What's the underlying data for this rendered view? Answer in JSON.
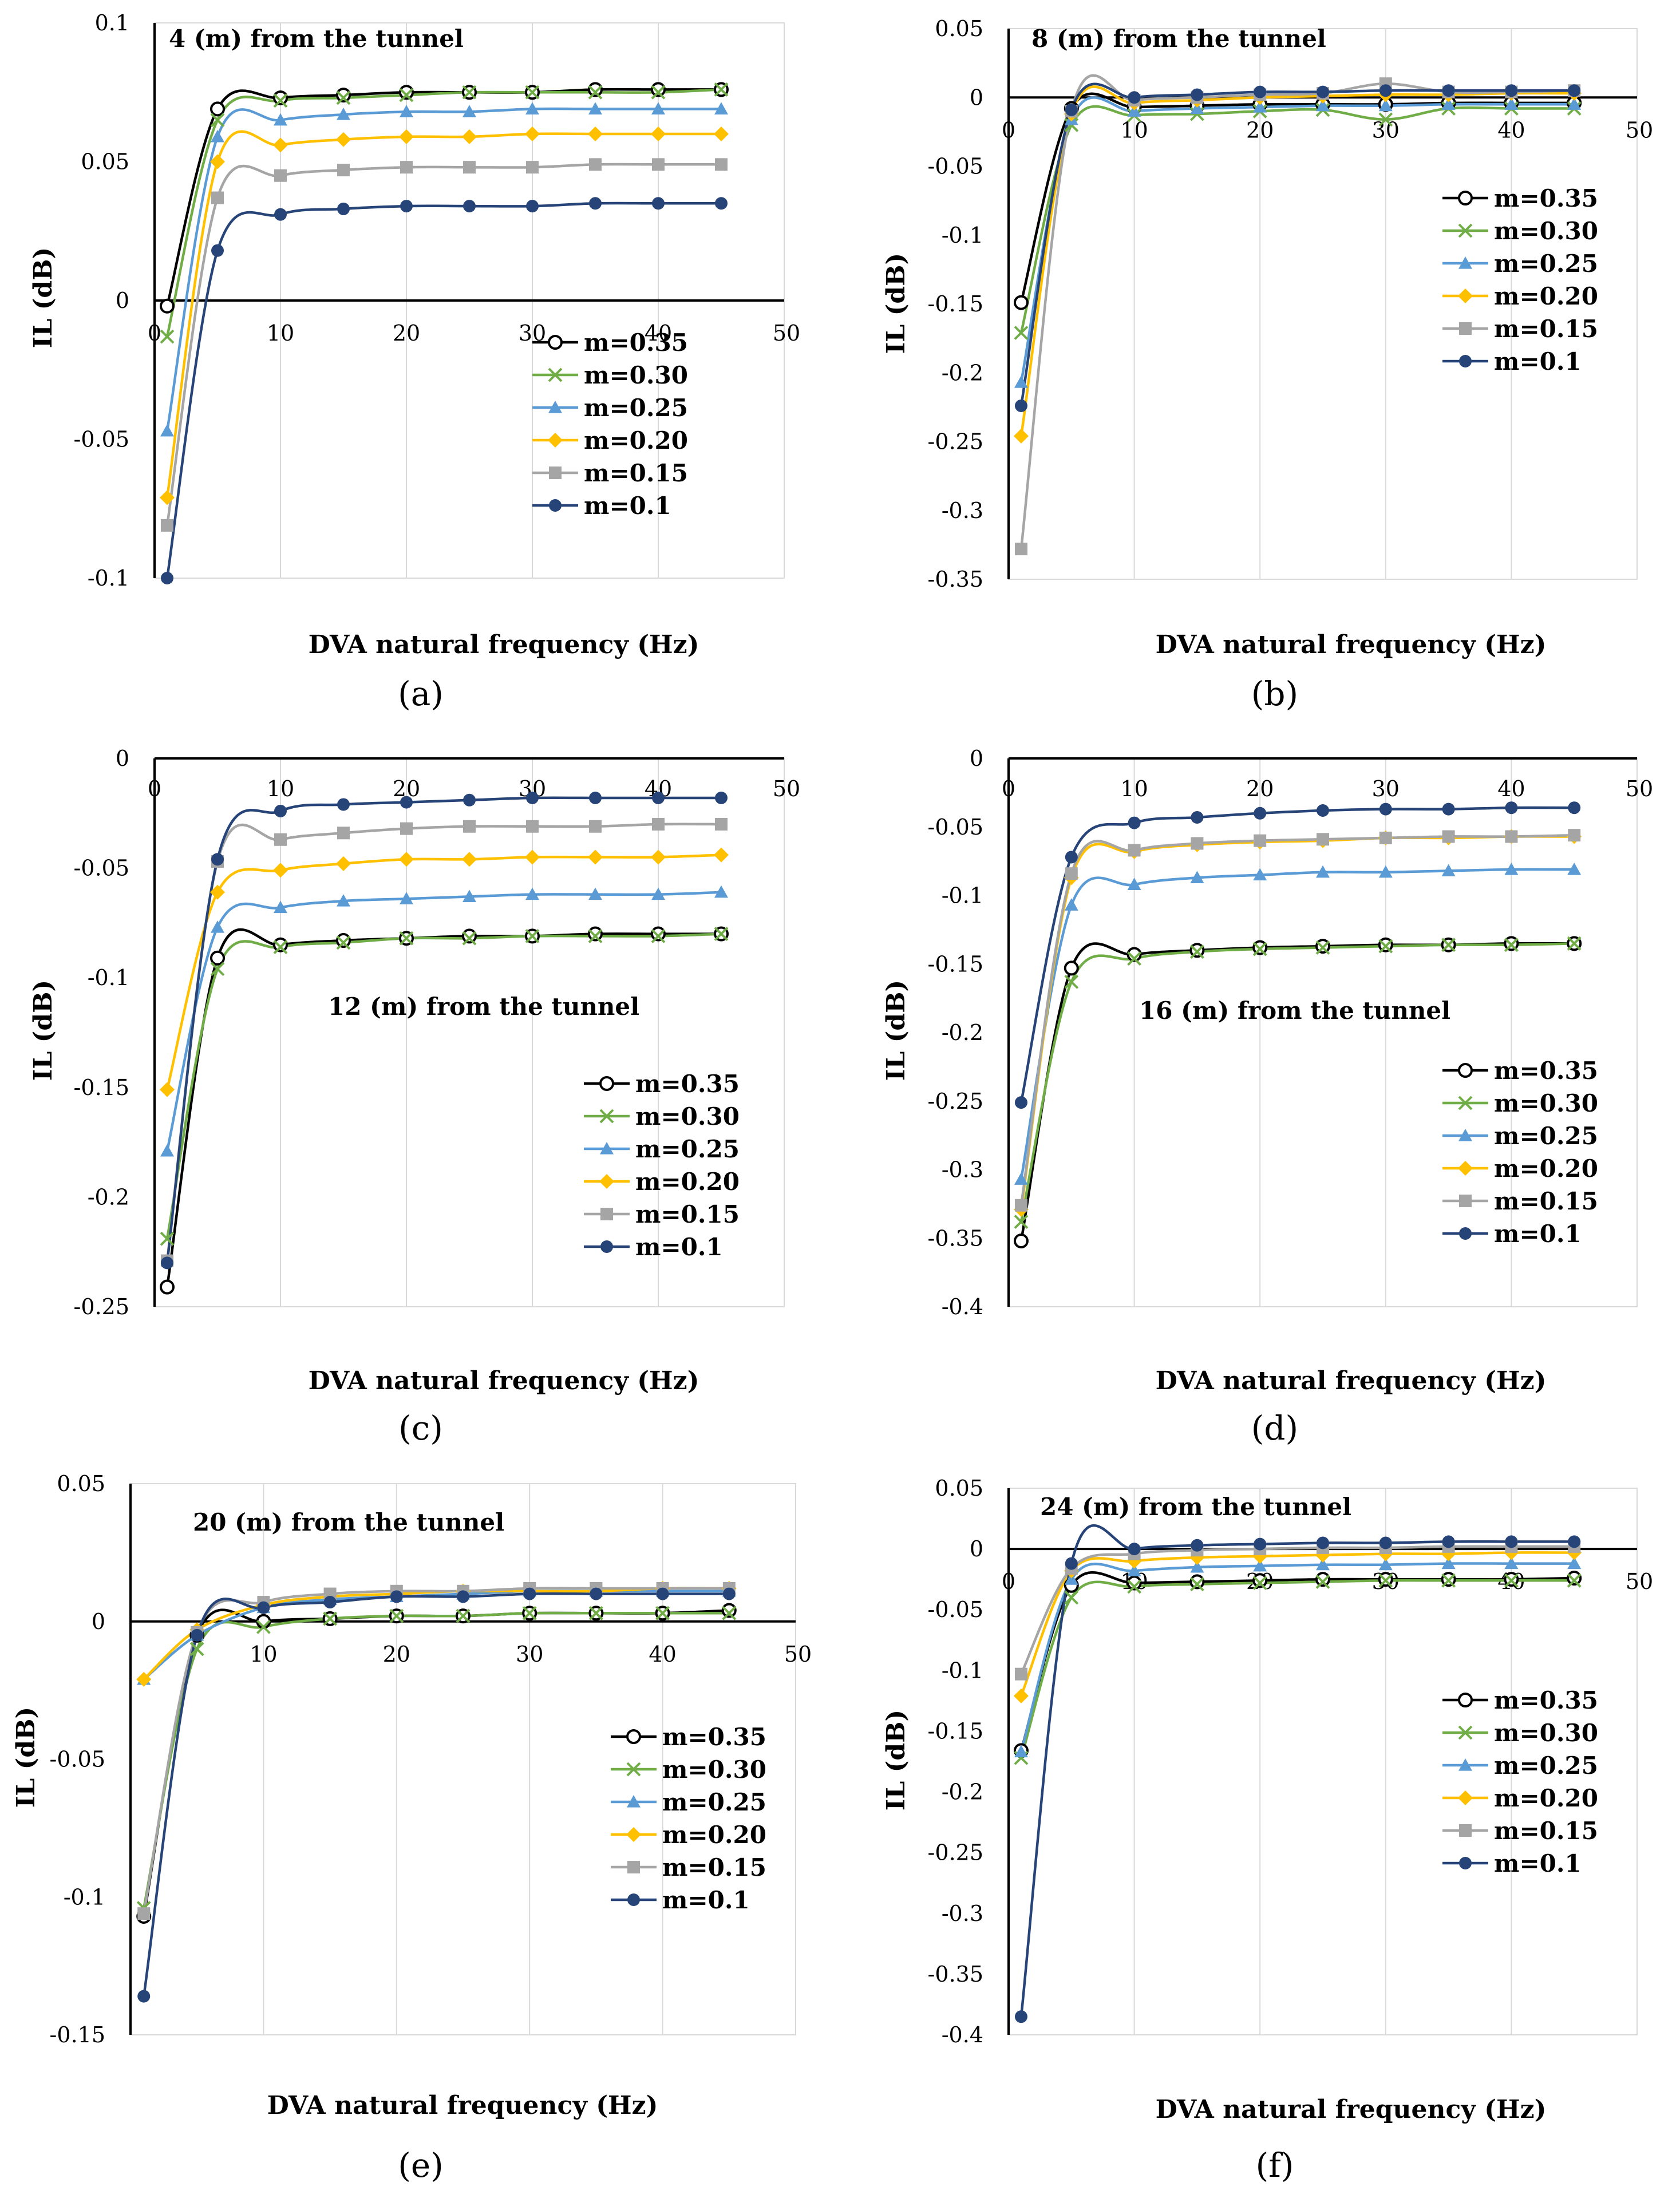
{
  "colors": {
    "m=0.35": "#000000",
    "m=0.30": "#70AD47",
    "m=0.25": "#5B9BD5",
    "m=0.20": "#FFC000",
    "m=0.15": "#A5A5A5",
    "m=0.1": "#264478"
  },
  "chart_data": [
    {
      "panel": "a",
      "type": "line",
      "title": "4 (m) from the tunnel",
      "xlabel": "DVA natural frequency (Hz)",
      "ylabel": "IL (dB)",
      "xlim": [
        0,
        50
      ],
      "ylim": [
        -0.1,
        0.1
      ],
      "xticks": [
        "10",
        "20",
        "30",
        "40",
        "50"
      ],
      "x_zero_label": "0",
      "yticks": [
        "0.1",
        "0.05",
        "0",
        "-0.05",
        "-0.1"
      ],
      "legend": "center-right",
      "x": [
        1,
        5,
        10,
        15,
        20,
        25,
        30,
        35,
        40,
        45
      ],
      "series": [
        {
          "name": "m=0.35",
          "marker": "circle-open",
          "values": [
            -0.002,
            0.069,
            0.073,
            0.074,
            0.075,
            0.075,
            0.075,
            0.076,
            0.076,
            0.076
          ]
        },
        {
          "name": "m=0.30",
          "marker": "x",
          "values": [
            -0.013,
            0.065,
            0.072,
            0.073,
            0.074,
            0.075,
            0.075,
            0.075,
            0.075,
            0.076
          ]
        },
        {
          "name": "m=0.25",
          "marker": "triangle",
          "values": [
            -0.047,
            0.059,
            0.065,
            0.067,
            0.068,
            0.068,
            0.069,
            0.069,
            0.069,
            0.069
          ]
        },
        {
          "name": "m=0.20",
          "marker": "diamond",
          "values": [
            -0.071,
            0.05,
            0.056,
            0.058,
            0.059,
            0.059,
            0.06,
            0.06,
            0.06,
            0.06
          ]
        },
        {
          "name": "m=0.15",
          "marker": "square",
          "values": [
            -0.081,
            0.037,
            0.045,
            0.047,
            0.048,
            0.048,
            0.048,
            0.049,
            0.049,
            0.049
          ]
        },
        {
          "name": "m=0.1",
          "marker": "circle",
          "values": [
            -0.1,
            0.018,
            0.031,
            0.033,
            0.034,
            0.034,
            0.034,
            0.035,
            0.035,
            0.035
          ]
        }
      ]
    },
    {
      "panel": "b",
      "type": "line",
      "title": "8 (m) from the tunnel",
      "xlabel": "DVA natural frequency (Hz)",
      "ylabel": "IL (dB)",
      "xlim": [
        0,
        50
      ],
      "ylim": [
        -0.35,
        0.05
      ],
      "xticks": [
        "10",
        "20",
        "30",
        "40",
        "50"
      ],
      "x_zero_label": "0",
      "yticks": [
        "0.05",
        "0",
        "-0.05",
        "-0.1",
        "-0.15",
        "-0.2",
        "-0.25",
        "-0.3",
        "-0.35"
      ],
      "legend": "center-right",
      "x": [
        1,
        5,
        10,
        15,
        20,
        25,
        30,
        35,
        40,
        45
      ],
      "series": [
        {
          "name": "m=0.35",
          "marker": "circle-open",
          "values": [
            -0.149,
            -0.008,
            -0.007,
            -0.006,
            -0.005,
            -0.005,
            -0.005,
            -0.004,
            -0.004,
            -0.004
          ]
        },
        {
          "name": "m=0.30",
          "marker": "x",
          "values": [
            -0.171,
            -0.02,
            -0.013,
            -0.012,
            -0.01,
            -0.009,
            -0.016,
            -0.008,
            -0.008,
            -0.008
          ]
        },
        {
          "name": "m=0.25",
          "marker": "triangle",
          "values": [
            -0.207,
            -0.016,
            -0.01,
            -0.008,
            -0.007,
            -0.006,
            -0.006,
            -0.005,
            -0.005,
            -0.005
          ]
        },
        {
          "name": "m=0.20",
          "marker": "diamond",
          "values": [
            -0.246,
            -0.012,
            -0.004,
            -0.002,
            0.0,
            0.001,
            0.002,
            0.002,
            0.003,
            0.003
          ]
        },
        {
          "name": "m=0.15",
          "marker": "square",
          "values": [
            -0.328,
            -0.01,
            -0.002,
            0.0,
            0.002,
            0.003,
            0.01,
            0.004,
            0.004,
            0.005
          ]
        },
        {
          "name": "m=0.1",
          "marker": "circle",
          "values": [
            -0.224,
            -0.009,
            0.0,
            0.002,
            0.004,
            0.004,
            0.005,
            0.005,
            0.005,
            0.005
          ]
        }
      ]
    },
    {
      "panel": "c",
      "type": "line",
      "title": "12 (m) from the tunnel",
      "xlabel": "DVA natural frequency (Hz)",
      "ylabel": "IL (dB)",
      "xlim": [
        0,
        50
      ],
      "ylim": [
        -0.25,
        0
      ],
      "xticks": [
        "10",
        "20",
        "30",
        "40",
        "50"
      ],
      "x_zero_label": "0",
      "yticks": [
        "0",
        "-0.05",
        "-0.1",
        "-0.15",
        "-0.2",
        "-0.25"
      ],
      "legend": "bottom-right",
      "x": [
        1,
        5,
        10,
        15,
        20,
        25,
        30,
        35,
        40,
        45
      ],
      "series": [
        {
          "name": "m=0.35",
          "marker": "circle-open",
          "values": [
            -0.241,
            -0.091,
            -0.085,
            -0.083,
            -0.082,
            -0.081,
            -0.081,
            -0.08,
            -0.08,
            -0.08
          ]
        },
        {
          "name": "m=0.30",
          "marker": "x",
          "values": [
            -0.219,
            -0.096,
            -0.086,
            -0.084,
            -0.082,
            -0.082,
            -0.081,
            -0.081,
            -0.081,
            -0.08
          ]
        },
        {
          "name": "m=0.25",
          "marker": "triangle",
          "values": [
            -0.179,
            -0.077,
            -0.068,
            -0.065,
            -0.064,
            -0.063,
            -0.062,
            -0.062,
            -0.062,
            -0.061
          ]
        },
        {
          "name": "m=0.20",
          "marker": "diamond",
          "values": [
            -0.151,
            -0.061,
            -0.051,
            -0.048,
            -0.046,
            -0.046,
            -0.045,
            -0.045,
            -0.045,
            -0.044
          ]
        },
        {
          "name": "m=0.15",
          "marker": "square",
          "values": [
            -0.229,
            -0.047,
            -0.037,
            -0.034,
            -0.032,
            -0.031,
            -0.031,
            -0.031,
            -0.03,
            -0.03
          ]
        },
        {
          "name": "m=0.1",
          "marker": "circle",
          "values": [
            -0.23,
            -0.046,
            -0.024,
            -0.021,
            -0.02,
            -0.019,
            -0.018,
            -0.018,
            -0.018,
            -0.018
          ]
        }
      ]
    },
    {
      "panel": "d",
      "type": "line",
      "title": "16 (m) from the tunnel",
      "xlabel": "DVA natural frequency (Hz)",
      "ylabel": "IL (dB)",
      "xlim": [
        0,
        50
      ],
      "ylim": [
        -0.4,
        0
      ],
      "xticks": [
        "10",
        "20",
        "30",
        "40",
        "50"
      ],
      "x_zero_label": "0",
      "yticks": [
        "0",
        "-0.05",
        "-0.1",
        "-0.15",
        "-0.2",
        "-0.25",
        "-0.3",
        "-0.35",
        "-0.4"
      ],
      "legend": "bottom-right",
      "x": [
        1,
        5,
        10,
        15,
        20,
        25,
        30,
        35,
        40,
        45
      ],
      "series": [
        {
          "name": "m=0.35",
          "marker": "circle-open",
          "values": [
            -0.352,
            -0.153,
            -0.143,
            -0.14,
            -0.138,
            -0.137,
            -0.136,
            -0.136,
            -0.135,
            -0.135
          ]
        },
        {
          "name": "m=0.30",
          "marker": "x",
          "values": [
            -0.338,
            -0.163,
            -0.146,
            -0.141,
            -0.139,
            -0.138,
            -0.137,
            -0.136,
            -0.136,
            -0.135
          ]
        },
        {
          "name": "m=0.25",
          "marker": "triangle",
          "values": [
            -0.307,
            -0.107,
            -0.092,
            -0.087,
            -0.085,
            -0.083,
            -0.083,
            -0.082,
            -0.081,
            -0.081
          ]
        },
        {
          "name": "m=0.20",
          "marker": "diamond",
          "values": [
            -0.329,
            -0.087,
            -0.068,
            -0.063,
            -0.061,
            -0.06,
            -0.058,
            -0.058,
            -0.057,
            -0.057
          ]
        },
        {
          "name": "m=0.15",
          "marker": "square",
          "values": [
            -0.326,
            -0.084,
            -0.067,
            -0.062,
            -0.06,
            -0.059,
            -0.058,
            -0.057,
            -0.057,
            -0.056
          ]
        },
        {
          "name": "m=0.1",
          "marker": "circle",
          "values": [
            -0.251,
            -0.072,
            -0.047,
            -0.043,
            -0.04,
            -0.038,
            -0.037,
            -0.037,
            -0.036,
            -0.036
          ]
        }
      ]
    },
    {
      "panel": "e",
      "type": "line",
      "title": "20 (m) from the tunnel",
      "xlabel": "DVA natural frequency (Hz)",
      "ylabel": "IL (dB)",
      "xlim": [
        0,
        50
      ],
      "ylim": [
        -0.15,
        0.05
      ],
      "xticks": [
        "10",
        "20",
        "30",
        "40",
        "50"
      ],
      "x_zero_label": "",
      "yticks": [
        "0.05",
        "0",
        "-0.05",
        "-0.1",
        "-0.15"
      ],
      "legend": "center-right",
      "x": [
        1,
        5,
        10,
        15,
        20,
        25,
        30,
        35,
        40,
        45
      ],
      "series": [
        {
          "name": "m=0.35",
          "marker": "circle-open",
          "values": [
            -0.107,
            -0.005,
            0.0,
            0.001,
            0.002,
            0.002,
            0.003,
            0.003,
            0.003,
            0.004
          ]
        },
        {
          "name": "m=0.30",
          "marker": "x",
          "values": [
            -0.104,
            -0.01,
            -0.002,
            0.001,
            0.002,
            0.002,
            0.003,
            0.003,
            0.003,
            0.003
          ]
        },
        {
          "name": "m=0.25",
          "marker": "triangle",
          "values": [
            -0.021,
            -0.005,
            0.005,
            0.008,
            0.009,
            0.01,
            0.011,
            0.011,
            0.011,
            0.011
          ]
        },
        {
          "name": "m=0.20",
          "marker": "diamond",
          "values": [
            -0.021,
            -0.003,
            0.006,
            0.009,
            0.01,
            0.011,
            0.011,
            0.011,
            0.012,
            0.012
          ]
        },
        {
          "name": "m=0.15",
          "marker": "square",
          "values": [
            -0.106,
            -0.004,
            0.007,
            0.01,
            0.011,
            0.011,
            0.012,
            0.012,
            0.012,
            0.012
          ]
        },
        {
          "name": "m=0.1",
          "marker": "circle",
          "values": [
            -0.136,
            -0.005,
            0.005,
            0.007,
            0.009,
            0.009,
            0.01,
            0.01,
            0.01,
            0.01
          ]
        }
      ]
    },
    {
      "panel": "f",
      "type": "line",
      "title": "24 (m) from the tunnel",
      "xlabel": "DVA natural frequency (Hz)",
      "ylabel": "IL (dB)",
      "xlim": [
        0,
        50
      ],
      "ylim": [
        -0.4,
        0.05
      ],
      "xticks": [
        "10",
        "20",
        "30",
        "40",
        "50"
      ],
      "x_zero_label": "0",
      "yticks": [
        "0.05",
        "0",
        "-0.05",
        "-0.1",
        "-0.15",
        "-0.2",
        "-0.25",
        "-0.3",
        "-0.35",
        "-0.4"
      ],
      "legend": "center-right",
      "x": [
        1,
        5,
        10,
        15,
        20,
        25,
        30,
        35,
        40,
        45
      ],
      "series": [
        {
          "name": "m=0.35",
          "marker": "circle-open",
          "values": [
            -0.166,
            -0.03,
            -0.028,
            -0.027,
            -0.026,
            -0.025,
            -0.025,
            -0.025,
            -0.025,
            -0.024
          ]
        },
        {
          "name": "m=0.30",
          "marker": "x",
          "values": [
            -0.172,
            -0.04,
            -0.031,
            -0.029,
            -0.028,
            -0.027,
            -0.026,
            -0.026,
            -0.026,
            -0.026
          ]
        },
        {
          "name": "m=0.25",
          "marker": "triangle",
          "values": [
            -0.167,
            -0.025,
            -0.018,
            -0.015,
            -0.014,
            -0.013,
            -0.013,
            -0.012,
            -0.012,
            -0.012
          ]
        },
        {
          "name": "m=0.20",
          "marker": "diamond",
          "values": [
            -0.121,
            -0.018,
            -0.01,
            -0.007,
            -0.006,
            -0.005,
            -0.004,
            -0.004,
            -0.003,
            -0.003
          ]
        },
        {
          "name": "m=0.15",
          "marker": "square",
          "values": [
            -0.103,
            -0.016,
            -0.004,
            -0.001,
            0.0,
            0.001,
            0.001,
            0.002,
            0.002,
            0.002
          ]
        },
        {
          "name": "m=0.1",
          "marker": "circle",
          "values": [
            -0.385,
            -0.012,
            0.0,
            0.003,
            0.004,
            0.005,
            0.005,
            0.006,
            0.006,
            0.006
          ]
        }
      ]
    }
  ],
  "panel_labels": [
    "(a)",
    "(b)",
    "(c)",
    "(d)",
    "(e)",
    "(f)"
  ]
}
